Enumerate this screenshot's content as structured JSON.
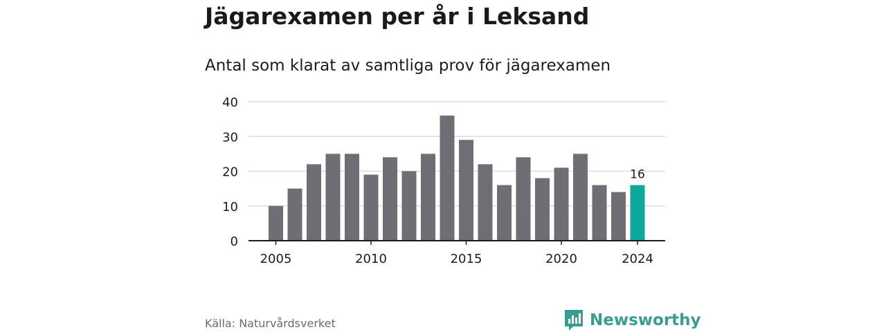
{
  "header": {
    "title": "Jägarexamen per år i Leksand",
    "subtitle": "Antal som klarat av samtliga prov för jägarexamen"
  },
  "footer": {
    "source": "Källa: Naturvårdsverket",
    "brand": "Newsworthy",
    "brand_icon": "bar-chart-speech-bubble-icon"
  },
  "colors": {
    "bar": "#6f6e74",
    "highlight": "#0ea89c",
    "grid": "#dcdcdc",
    "axis": "#1a1a1a",
    "brand": "#3a9c90"
  },
  "chart_data": {
    "type": "bar",
    "categories": [
      2005,
      2006,
      2007,
      2008,
      2009,
      2010,
      2011,
      2012,
      2013,
      2014,
      2015,
      2016,
      2017,
      2018,
      2019,
      2020,
      2021,
      2022,
      2023,
      2024
    ],
    "values": [
      10,
      15,
      22,
      25,
      25,
      19,
      24,
      20,
      25,
      36,
      29,
      22,
      16,
      24,
      18,
      21,
      25,
      16,
      14,
      16
    ],
    "highlight_category": 2024,
    "data_labels": [
      {
        "category": 2024,
        "text": "16"
      }
    ],
    "x_ticks": [
      2005,
      2010,
      2015,
      2020,
      2024
    ],
    "y_ticks": [
      0,
      10,
      20,
      30,
      40
    ],
    "ylim": [
      0,
      40
    ],
    "grid": true,
    "legend": "none"
  }
}
